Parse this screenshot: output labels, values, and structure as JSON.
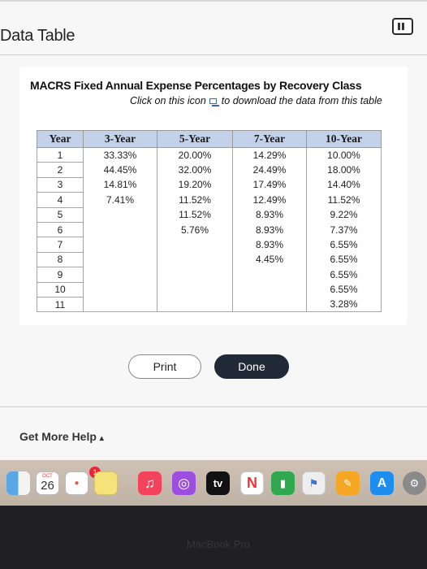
{
  "window": {
    "title": "Data Table"
  },
  "panel": {
    "title": "MACRS Fixed Annual Expense Percentages by Recovery Class",
    "instruction_before": "Click on this icon",
    "instruction_after": "to download the data from this table"
  },
  "table": {
    "headers": [
      "Year",
      "3-Year",
      "5-Year",
      "7-Year",
      "10-Year"
    ],
    "rows": [
      [
        "1",
        "33.33%",
        "20.00%",
        "14.29%",
        "10.00%"
      ],
      [
        "2",
        "44.45%",
        "32.00%",
        "24.49%",
        "18.00%"
      ],
      [
        "3",
        "14.81%",
        "19.20%",
        "17.49%",
        "14.40%"
      ],
      [
        "4",
        "7.41%",
        "11.52%",
        "12.49%",
        "11.52%"
      ],
      [
        "5",
        "",
        "11.52%",
        "8.93%",
        "9.22%"
      ],
      [
        "6",
        "",
        "5.76%",
        "8.93%",
        "7.37%"
      ],
      [
        "7",
        "",
        "",
        "8.93%",
        "6.55%"
      ],
      [
        "8",
        "",
        "",
        "4.45%",
        "6.55%"
      ],
      [
        "9",
        "",
        "",
        "",
        "6.55%"
      ],
      [
        "10",
        "",
        "",
        "",
        "6.55%"
      ],
      [
        "11",
        "",
        "",
        "",
        "3.28%"
      ]
    ]
  },
  "buttons": {
    "print": "Print",
    "done": "Done"
  },
  "help": {
    "label": "Get More Help",
    "caret": "▴"
  },
  "dock": {
    "calendar_month": "OCT",
    "calendar_day": "26",
    "badge": "1",
    "tv_label": "tv",
    "icons": [
      "finder-icon",
      "calendar-icon",
      "reminders-icon",
      "notes-icon",
      "music-icon",
      "podcasts-icon",
      "apple-tv-icon",
      "news-icon",
      "numbers-icon",
      "keynote-icon",
      "pages-icon",
      "app-store-icon",
      "system-preferences-icon"
    ]
  },
  "device": {
    "brand": "MacBook Pro"
  }
}
